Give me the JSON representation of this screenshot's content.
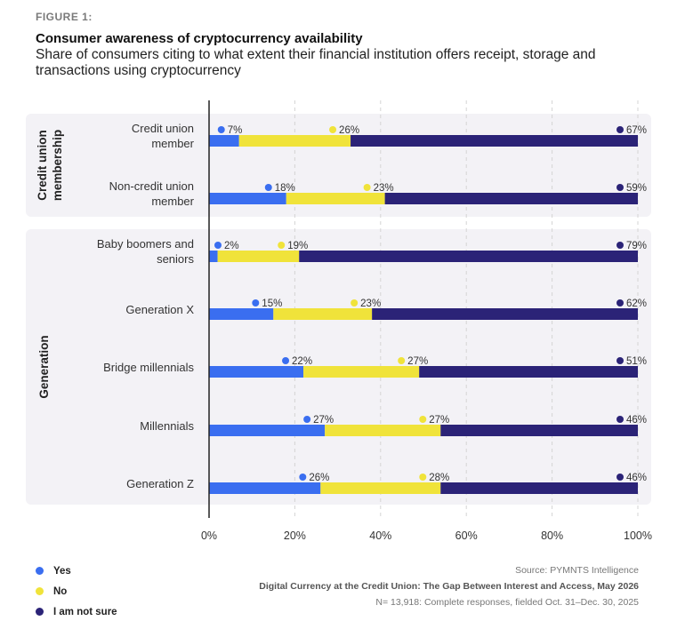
{
  "figure_label": "FIGURE 1:",
  "title": "Consumer awareness of cryptocurrency availability",
  "subtitle": "Share of consumers citing to what extent their financial institution offers receipt, storage and transactions using cryptocurrency",
  "source": {
    "line1": "Source: PYMNTS Intelligence",
    "line2": "Digital Currency at the Credit Union: The Gap Between Interest and Access, May 2026",
    "line3": "N= 13,918: Complete responses, fielded Oct. 31–Dec. 30, 2025"
  },
  "colors": {
    "yes": "#3a6ef0",
    "no": "#f0e33a",
    "not_sure": "#2b2377",
    "panel": "#f3f2f6",
    "grid": "#d4d4d4"
  },
  "chart_data": {
    "type": "bar",
    "orientation": "horizontal",
    "stacked": true,
    "xlim": [
      0,
      100
    ],
    "x_ticks": [
      "0%",
      "20%",
      "40%",
      "60%",
      "80%",
      "100%"
    ],
    "grid": true,
    "legend_placement": "bottom-left",
    "groups": [
      {
        "name": "Credit union membership",
        "categories": [
          [
            "Credit union",
            "member"
          ],
          [
            "Non-credit union",
            "member"
          ]
        ]
      },
      {
        "name": "Generation",
        "categories": [
          [
            "Baby boomers and",
            "seniors"
          ],
          [
            "Generation X"
          ],
          [
            "Bridge millennials"
          ],
          [
            "Millennials"
          ],
          [
            "Generation Z"
          ]
        ]
      }
    ],
    "series": [
      {
        "name": "Yes",
        "values": [
          7,
          18,
          2,
          15,
          22,
          27,
          26
        ]
      },
      {
        "name": "No",
        "values": [
          26,
          23,
          19,
          23,
          27,
          27,
          28
        ]
      },
      {
        "name": "I am not sure",
        "values": [
          67,
          59,
          79,
          62,
          51,
          46,
          46
        ]
      }
    ]
  }
}
